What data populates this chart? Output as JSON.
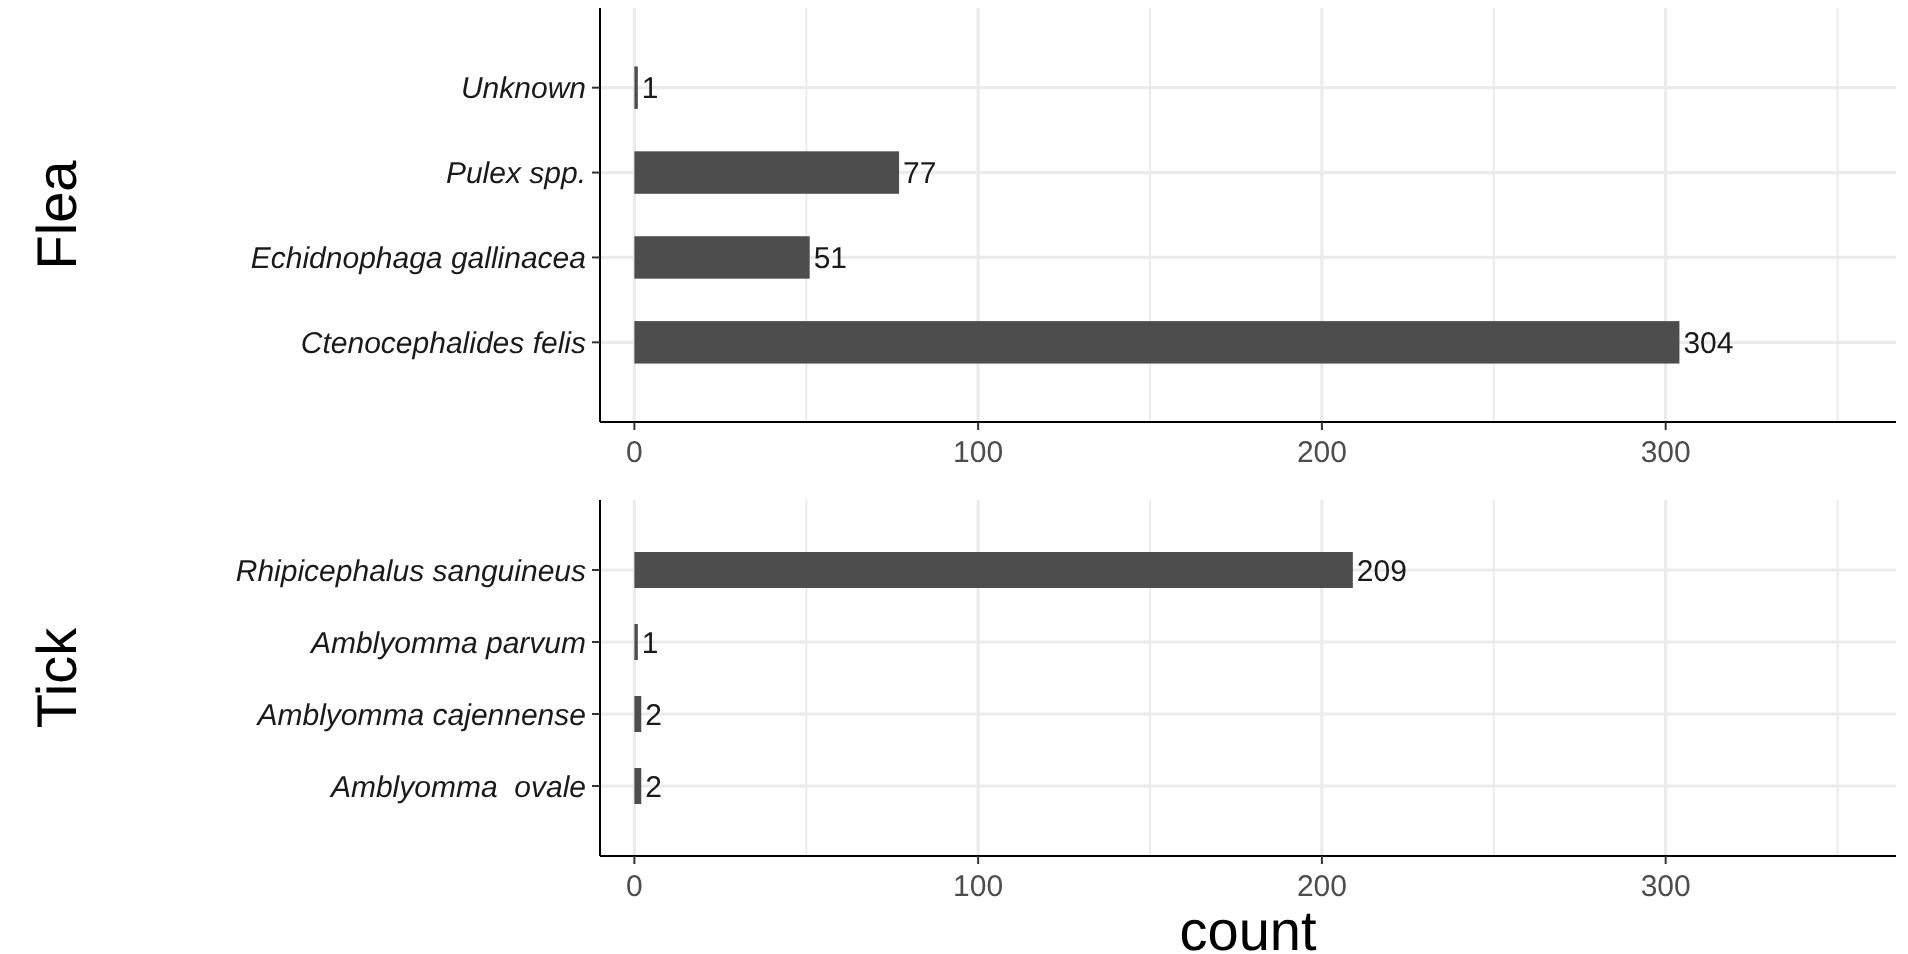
{
  "chart_data": [
    {
      "type": "bar",
      "orientation": "horizontal",
      "ylabel": "Flea",
      "categories": [
        "Unknown",
        "Pulex spp.",
        "Echidnophaga gallinacea",
        "Ctenocephalides felis"
      ],
      "values": [
        1,
        77,
        51,
        304
      ],
      "color": "#4d4d4d",
      "data_labels": true,
      "xlim": [
        -10,
        367
      ],
      "xticks": [
        0,
        {
          "value": 50,
          "label": null
        },
        100,
        {
          "value": 150,
          "label": null
        },
        200,
        {
          "value": 250,
          "label": null
        },
        300,
        {
          "value": 350,
          "label": null
        }
      ],
      "grid": true
    },
    {
      "type": "bar",
      "orientation": "horizontal",
      "ylabel": "Tick",
      "xlabel": "count",
      "categories": [
        "Rhipicephalus sanguineus",
        "Amblyomma parvum",
        "Amblyomma cajennense",
        "Amblyomma  ovale"
      ],
      "values": [
        209,
        1,
        2,
        2
      ],
      "color": "#4d4d4d",
      "data_labels": true,
      "xlim": [
        -10,
        367
      ],
      "xticks": [
        0,
        {
          "value": 50,
          "label": null
        },
        100,
        {
          "value": 150,
          "label": null
        },
        200,
        {
          "value": 250,
          "label": null
        },
        300,
        {
          "value": 350,
          "label": null
        }
      ],
      "grid": true
    }
  ]
}
